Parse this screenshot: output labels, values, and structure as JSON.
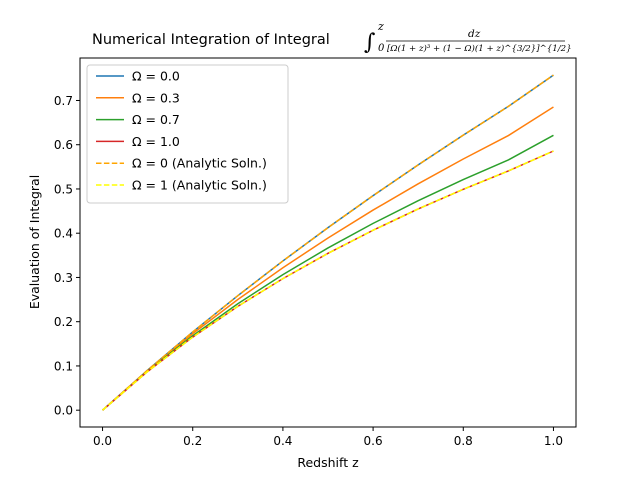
{
  "chart_data": {
    "type": "line",
    "title": "Numerical Integration of Integral",
    "title_math": {
      "integral_upper": "z",
      "integral_lower": "0",
      "numerator": "dz",
      "denominator": "[Ω(1 + z)³ + (1 − Ω)(1 + z)^{3/2}]^{1/2}"
    },
    "xlabel": "Redshift z",
    "ylabel": "Evaluation of Integral",
    "xlim": [
      -0.05,
      1.05
    ],
    "ylim": [
      -0.038,
      0.796
    ],
    "xticks": [
      0.0,
      0.2,
      0.4,
      0.6,
      0.8,
      1.0
    ],
    "xtick_labels": [
      "0.0",
      "0.2",
      "0.4",
      "0.6",
      "0.8",
      "1.0"
    ],
    "yticks": [
      0.0,
      0.1,
      0.2,
      0.3,
      0.4,
      0.5,
      0.6,
      0.7
    ],
    "ytick_labels": [
      "0.0",
      "0.1",
      "0.2",
      "0.3",
      "0.4",
      "0.5",
      "0.6",
      "0.7"
    ],
    "grid": false,
    "legend_position": "top-left",
    "series": [
      {
        "name": "Ω = 0.0",
        "color": "#1f77b4",
        "dash": "solid",
        "x": [
          0.0,
          0.1,
          0.2,
          0.3,
          0.4,
          0.5,
          0.6,
          0.7,
          0.8,
          0.9,
          1.0
        ],
        "y": [
          0.0,
          0.0906,
          0.1768,
          0.2588,
          0.3373,
          0.4126,
          0.4849,
          0.5545,
          0.6217,
          0.6866,
          0.7574
        ]
      },
      {
        "name": "Ω = 0.3",
        "color": "#ff7f0e",
        "dash": "solid",
        "x": [
          0.0,
          0.1,
          0.2,
          0.3,
          0.4,
          0.5,
          0.6,
          0.7,
          0.8,
          0.9,
          1.0
        ],
        "y": [
          0.0,
          0.0899,
          0.173,
          0.2501,
          0.322,
          0.3892,
          0.4523,
          0.5117,
          0.5677,
          0.6207,
          0.6853
        ]
      },
      {
        "name": "Ω = 0.7",
        "color": "#2ca02c",
        "dash": "solid",
        "x": [
          0.0,
          0.1,
          0.2,
          0.3,
          0.4,
          0.5,
          0.6,
          0.7,
          0.8,
          0.9,
          1.0
        ],
        "y": [
          0.0,
          0.0886,
          0.1684,
          0.2406,
          0.3064,
          0.3667,
          0.4222,
          0.4735,
          0.5212,
          0.5656,
          0.6213
        ]
      },
      {
        "name": "Ω = 1.0",
        "color": "#d62728",
        "dash": "solid",
        "x": [
          0.0,
          0.1,
          0.2,
          0.3,
          0.4,
          0.5,
          0.6,
          0.7,
          0.8,
          0.9,
          1.0
        ],
        "y": [
          0.0,
          0.0875,
          0.1652,
          0.2347,
          0.2974,
          0.3545,
          0.4067,
          0.4548,
          0.4993,
          0.5407,
          0.5858
        ]
      },
      {
        "name": "Ω = 0 (Analytic Soln.)",
        "color": "#ffa500",
        "dash": "dashed",
        "x": [
          0.0,
          0.1,
          0.2,
          0.3,
          0.4,
          0.5,
          0.6,
          0.7,
          0.8,
          0.9,
          1.0
        ],
        "y": [
          0.0,
          0.0906,
          0.1768,
          0.2588,
          0.3373,
          0.4126,
          0.4849,
          0.5545,
          0.6217,
          0.6866,
          0.7574
        ]
      },
      {
        "name": "Ω = 1 (Analytic Soln.)",
        "color": "#ffff00",
        "dash": "dashed",
        "x": [
          0.0,
          0.1,
          0.2,
          0.3,
          0.4,
          0.5,
          0.6,
          0.7,
          0.8,
          0.9,
          1.0
        ],
        "y": [
          0.0,
          0.0875,
          0.1652,
          0.2347,
          0.2974,
          0.3545,
          0.4067,
          0.4548,
          0.4993,
          0.5407,
          0.5858
        ]
      }
    ]
  }
}
